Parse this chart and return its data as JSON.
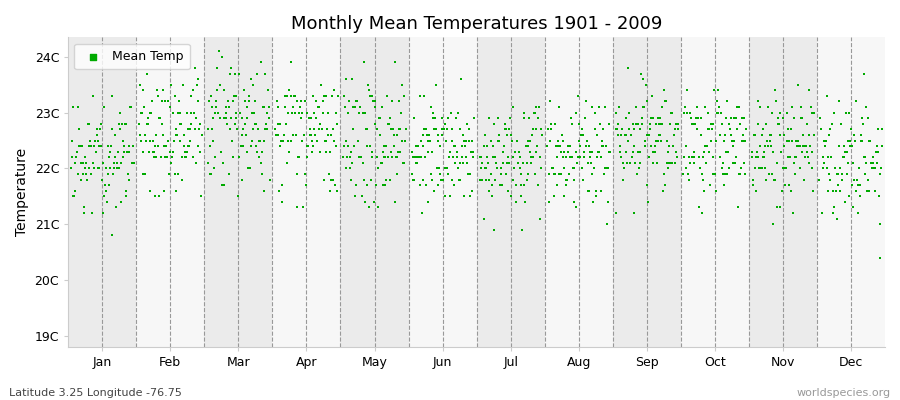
{
  "title": "Monthly Mean Temperatures 1901 - 2009",
  "ylabel": "Temperature",
  "subtitle": "Latitude 3.25 Longitude -76.75",
  "watermark": "worldspecies.org",
  "months": [
    "Jan",
    "Feb",
    "Mar",
    "Apr",
    "May",
    "Jun",
    "Jul",
    "Aug",
    "Sep",
    "Oct",
    "Nov",
    "Dec"
  ],
  "ytick_labels": [
    "19C",
    "20C",
    "21C",
    "22C",
    "23C",
    "24C"
  ],
  "ytick_values": [
    19,
    20,
    21,
    22,
    23,
    24
  ],
  "ymin": 18.8,
  "ymax": 24.35,
  "n_years": 109,
  "seed": 42,
  "mean_temps": [
    22.25,
    22.55,
    22.75,
    22.65,
    22.45,
    22.35,
    22.2,
    22.3,
    22.5,
    22.45,
    22.35,
    22.25
  ],
  "std_temps": [
    0.55,
    0.52,
    0.55,
    0.5,
    0.48,
    0.45,
    0.45,
    0.48,
    0.52,
    0.5,
    0.5,
    0.55
  ],
  "marker_color": "#00aa00",
  "marker_size": 4,
  "bg_color": "#ffffff",
  "band_color_dark": "#ebebeb",
  "band_color_light": "#f7f7f7",
  "grid_color": "#999999",
  "legend_label": "Mean Temp",
  "dashed_lines_per_month": 2
}
